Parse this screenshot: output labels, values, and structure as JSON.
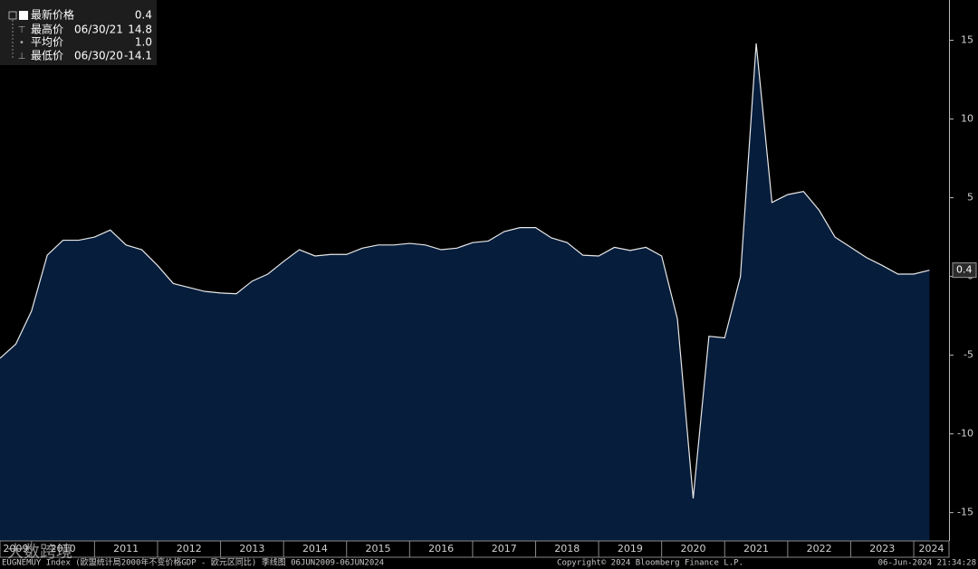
{
  "chart_data": {
    "type": "area",
    "series": [
      {
        "name": "最新价格",
        "color": "#e8e8e8",
        "fill": "#061d3c",
        "values": [
          -5.2,
          -4.3,
          -2.2,
          1.35,
          2.3,
          2.3,
          2.5,
          2.95,
          2.0,
          1.7,
          0.7,
          -0.45,
          -0.7,
          -0.95,
          -1.05,
          -1.1,
          -0.3,
          0.15,
          0.95,
          1.7,
          1.3,
          1.4,
          1.4,
          1.8,
          2.0,
          2.0,
          2.1,
          2.0,
          1.7,
          1.8,
          2.15,
          2.25,
          2.85,
          3.1,
          3.1,
          2.45,
          2.15,
          1.35,
          1.3,
          1.85,
          1.65,
          1.85,
          1.3,
          -2.7,
          -14.1,
          -3.8,
          -3.9,
          0.0,
          14.8,
          4.7,
          5.2,
          5.4,
          4.2,
          2.5,
          1.85,
          1.2,
          0.7,
          0.15,
          0.15,
          0.4
        ]
      }
    ],
    "x": [
      2009.5,
      2009.75,
      2010,
      2010.25,
      2010.5,
      2010.75,
      2011,
      2011.25,
      2011.5,
      2011.75,
      2012,
      2012.25,
      2012.5,
      2012.75,
      2013,
      2013.25,
      2013.5,
      2013.75,
      2014,
      2014.25,
      2014.5,
      2014.75,
      2015,
      2015.25,
      2015.5,
      2015.75,
      2016,
      2016.25,
      2016.5,
      2016.75,
      2017,
      2017.25,
      2017.5,
      2017.75,
      2018,
      2018.25,
      2018.5,
      2018.75,
      2019,
      2019.25,
      2019.5,
      2019.75,
      2020,
      2020.25,
      2020.5,
      2020.75,
      2021,
      2021.25,
      2021.5,
      2021.75,
      2022,
      2022.25,
      2022.5,
      2022.75,
      2023,
      2023.25,
      2023.5,
      2023.75,
      2024,
      2024.25
    ],
    "xlim": [
      2009.5,
      2024.56
    ],
    "xticks": [
      2009,
      2010,
      2011,
      2012,
      2013,
      2014,
      2015,
      2016,
      2017,
      2018,
      2019,
      2020,
      2021,
      2022,
      2023,
      2024
    ],
    "ylim": [
      -16.8,
      17.56
    ],
    "yticks": [
      -15,
      -10,
      -5,
      0,
      5,
      10,
      15
    ],
    "grid": false,
    "legend": {
      "rows": [
        {
          "label": "最新价格",
          "date": null,
          "value": "0.4"
        },
        {
          "label": "最高价",
          "date": "06/30/21",
          "value": "14.8"
        },
        {
          "label": "平均价",
          "date": null,
          "value": "1.0"
        },
        {
          "label": "最低价",
          "date": "06/30/20",
          "value": "-14.1"
        }
      ]
    },
    "footer": {
      "left": "EUGNEMUY Index (欧盟统计局2000年不变价格GDP - 欧元区同比) 季线图 06JUN2009-06JUN2024",
      "center": "Copyright© 2024 Bloomberg Finance L.P.",
      "right": "06-Jun-2024 21:34:28"
    },
    "watermark": "大数跨境"
  }
}
